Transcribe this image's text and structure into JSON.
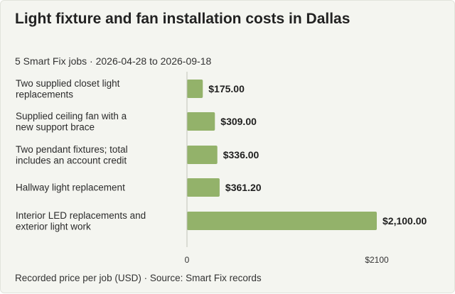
{
  "title": "Light fixture and fan installation costs in Dallas",
  "subtitle": "5 Smart Fix jobs · 2026-04-28 to 2026-09-18",
  "footer": "Recorded price per job (USD) · Source: Smart Fix records",
  "colors": {
    "background": "#f4f5f0",
    "bar": "#93b26a",
    "axis": "#bfc2b8",
    "text": "#222222"
  },
  "chart_data": {
    "type": "bar",
    "orientation": "horizontal",
    "categories": [
      [
        "Two supplied closet light",
        "replacements"
      ],
      [
        "Supplied ceiling fan with a",
        "new support brace"
      ],
      [
        "Two pendant fixtures; total",
        "includes an account credit"
      ],
      [
        "Hallway light replacement"
      ],
      [
        "Interior LED replacements and",
        "exterior light work"
      ]
    ],
    "values": [
      175.0,
      309.0,
      336.0,
      361.2,
      2100.0
    ],
    "value_labels": [
      "$175.00",
      "$309.00",
      "$336.00",
      "$361.20",
      "$2,100.00"
    ],
    "xlim": [
      0,
      2100
    ],
    "x_ticks": [
      0,
      2100
    ],
    "x_tick_labels": [
      "0",
      "$2100"
    ],
    "grid": false,
    "legend": "none"
  }
}
